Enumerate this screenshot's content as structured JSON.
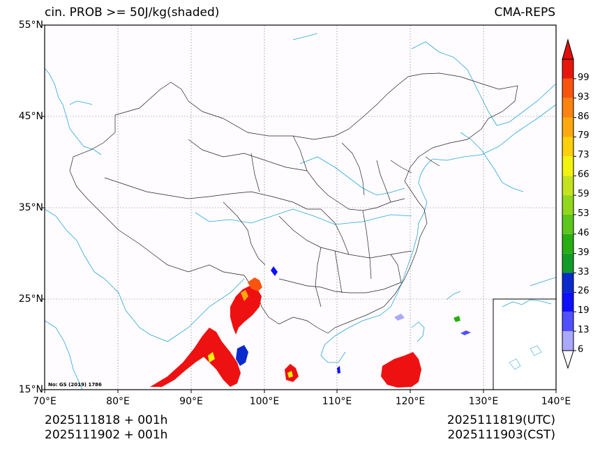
{
  "title": {
    "left": "cin. PROB >= 50J/kg(shaded)",
    "right": "CMA-REPS"
  },
  "axes": {
    "lat_labels": [
      "55°N",
      "45°N",
      "35°N",
      "25°N",
      "15°N"
    ],
    "lon_labels": [
      "70°E",
      "80°E",
      "90°E",
      "100°E",
      "110°E",
      "120°E",
      "130°E",
      "140°E"
    ],
    "lat_range": [
      15,
      55
    ],
    "lon_range": [
      70,
      140
    ]
  },
  "colorbar": {
    "levels": [
      "6",
      "13",
      "19",
      "26",
      "33",
      "39",
      "46",
      "53",
      "59",
      "66",
      "73",
      "79",
      "86",
      "93",
      "99"
    ],
    "colors": [
      "#a9a9ff",
      "#5050ff",
      "#0f0fff",
      "#0a2acd",
      "#139b2a",
      "#28ad13",
      "#5cc61b",
      "#91d71c",
      "#c5e21e",
      "#f3f20c",
      "#fdd00b",
      "#fca90f",
      "#fb830f",
      "#f9540e",
      "#e8170d",
      "#e10f0c"
    ]
  },
  "footer": {
    "init_utc": "2025111818  +  001h",
    "init_cst": "2025111902  +  001h",
    "valid_utc": "2025111819(UTC)",
    "valid_cst": "2025111903(CST)"
  },
  "note": "No: GS (2019) 1786",
  "style": {
    "coast_color": "#27a6d9",
    "border_color": "#222222",
    "shade_main": "#ee1111"
  }
}
